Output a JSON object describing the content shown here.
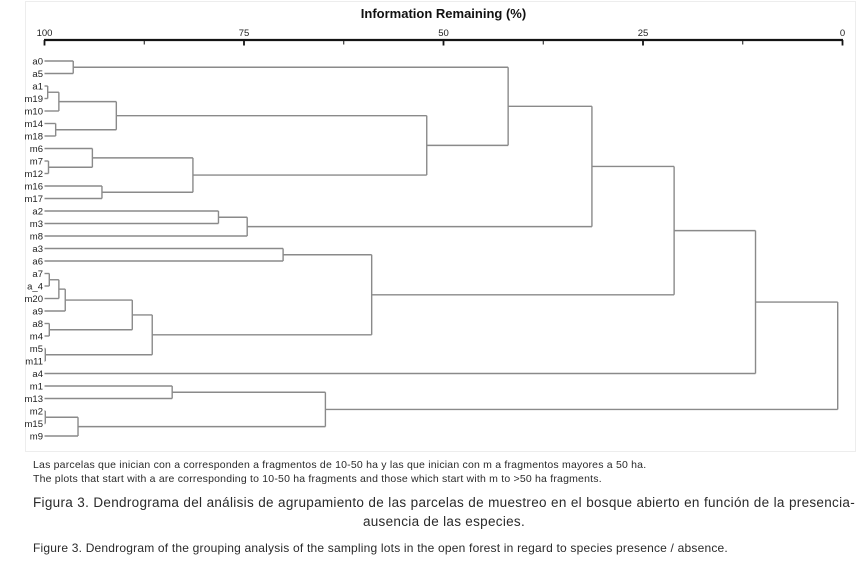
{
  "chart_data": {
    "type": "dendrogram",
    "title": "Information Remaining (%)",
    "orientation": "left-to-right",
    "x_axis": {
      "label": "Information Remaining (%)",
      "range": [
        100,
        0
      ],
      "ticks": [
        100,
        75,
        50,
        25,
        0
      ],
      "minor_ticks": [
        87.5,
        62.5,
        37.5,
        12.5
      ]
    },
    "legend": null,
    "grid": false,
    "leaves": [
      "a0",
      "a5",
      "a1",
      "m19",
      "m10",
      "m14",
      "m18",
      "m6",
      "m7",
      "m12",
      "m16",
      "m17",
      "a2",
      "m3",
      "m8",
      "a3",
      "a6",
      "a7",
      "a_4",
      "m20",
      "a9",
      "a8",
      "m4",
      "m5",
      "m11",
      "a4",
      "m1",
      "m13",
      "m2",
      "m15",
      "m9"
    ],
    "tree": {
      "v": 0.6,
      "children": [
        {
          "v": 10.9,
          "children": [
            {
              "v": 21.1,
              "children": [
                {
                  "v": 31.4,
                  "children": [
                    {
                      "v": 41.9,
                      "children": [
                        {
                          "v": 96.4,
                          "children": [
                            "a0",
                            "a5"
                          ]
                        },
                        {
                          "v": 52.1,
                          "children": [
                            {
                              "v": 91.0,
                              "children": [
                                {
                                  "v": 98.2,
                                  "children": [
                                    {
                                      "v": 99.6,
                                      "children": [
                                        "a1",
                                        "m19"
                                      ]
                                    },
                                    "m10"
                                  ]
                                },
                                {
                                  "v": 98.6,
                                  "children": [
                                    "m14",
                                    "m18"
                                  ]
                                }
                              ]
                            },
                            {
                              "v": 81.4,
                              "children": [
                                {
                                  "v": 94.0,
                                  "children": [
                                    "m6",
                                    {
                                      "v": 99.5,
                                      "children": [
                                        "m7",
                                        "m12"
                                      ]
                                    }
                                  ]
                                },
                                {
                                  "v": 92.8,
                                  "children": [
                                    "m16",
                                    "m17"
                                  ]
                                }
                              ]
                            }
                          ]
                        }
                      ]
                    },
                    {
                      "v": 74.6,
                      "children": [
                        {
                          "v": 78.2,
                          "children": [
                            "a2",
                            "m3"
                          ]
                        },
                        "m8"
                      ]
                    }
                  ]
                },
                {
                  "v": 59.0,
                  "children": [
                    {
                      "v": 70.1,
                      "children": [
                        "a3",
                        "a6"
                      ]
                    },
                    {
                      "v": 86.5,
                      "children": [
                        {
                          "v": 89.0,
                          "children": [
                            {
                              "v": 97.4,
                              "children": [
                                {
                                  "v": 98.2,
                                  "children": [
                                    {
                                      "v": 99.4,
                                      "children": [
                                        "a7",
                                        "a_4"
                                      ]
                                    },
                                    "m20"
                                  ]
                                },
                                "a9"
                              ]
                            },
                            {
                              "v": 99.4,
                              "children": [
                                "a8",
                                "m4"
                              ]
                            }
                          ]
                        },
                        {
                          "v": 99.9,
                          "children": [
                            "m5",
                            "m11"
                          ]
                        }
                      ]
                    }
                  ]
                }
              ]
            },
            "a4"
          ]
        },
        {
          "v": 64.8,
          "children": [
            {
              "v": 84.0,
              "children": [
                "m1",
                "m13"
              ]
            },
            {
              "v": 95.8,
              "children": [
                {
                  "v": 99.9,
                  "children": [
                    "m2",
                    "m15"
                  ]
                },
                "m9"
              ]
            }
          ]
        }
      ]
    },
    "colors": {
      "dendrogram_line": "#8a8a8a",
      "axis_line": "#141414",
      "tick_label": "#222222",
      "leaf_label": "#222222",
      "title": "#111111"
    }
  },
  "caption": {
    "note_es": "Las parcelas que inician con a corresponden a fragmentos de 10-50 ha y las que inician con m a fragmentos mayores a 50 ha.",
    "note_en": "The plots that start with a are corresponding to 10-50 ha fragments and those which start with m to >50 ha fragments.",
    "figura_es": "Figura 3. Dendrograma del análisis de agrupamiento de las parcelas de muestreo en el bosque abierto en función de la presencia-ausencia de las especies.",
    "figure_en": "Figure 3. Dendrogram of the grouping analysis of the sampling lots in the open forest in regard to species presence / absence."
  }
}
